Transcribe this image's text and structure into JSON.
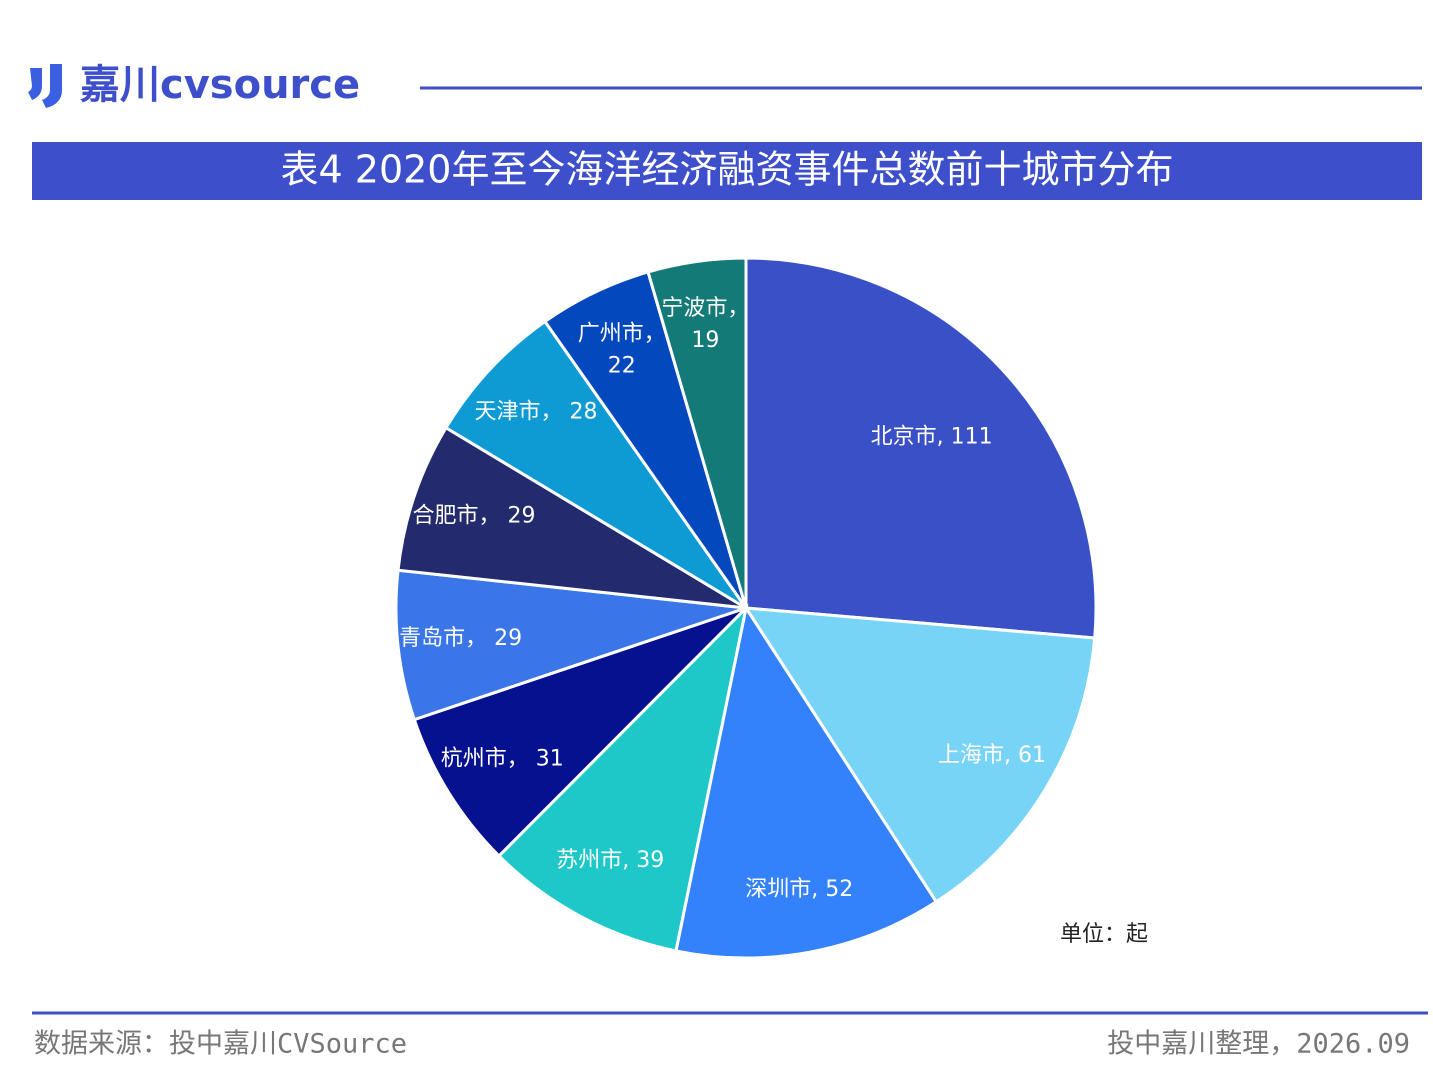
{
  "brand": "嘉川cvsource",
  "footer": {
    "source": "数据来源：投中嘉川CVSource",
    "credit": "投中嘉川整理，2026.09"
  },
  "chart_data": {
    "type": "pie",
    "title": "表4 2020年至今海洋经济融资事件总数前十城市分布",
    "unit_note": "单位：起",
    "values": [
      111,
      61,
      52,
      39,
      31,
      29,
      29,
      28,
      22,
      19
    ],
    "value_labels": [
      "北京市, 111",
      "上海市, 61",
      "深圳市, 52",
      "苏州市, 39",
      "杭州市， 31",
      "青岛市， 29",
      "合肥市， 29",
      "天津市， 28",
      "广州市， 22",
      "宁波市， 19"
    ],
    "colors": [
      "#3a50c6",
      "#78d4f6",
      "#3381fb",
      "#1ec8c8",
      "#06118f",
      "#3a76e8",
      "#232b6e",
      "#0e9bd4",
      "#0448bd",
      "#137a77"
    ]
  }
}
